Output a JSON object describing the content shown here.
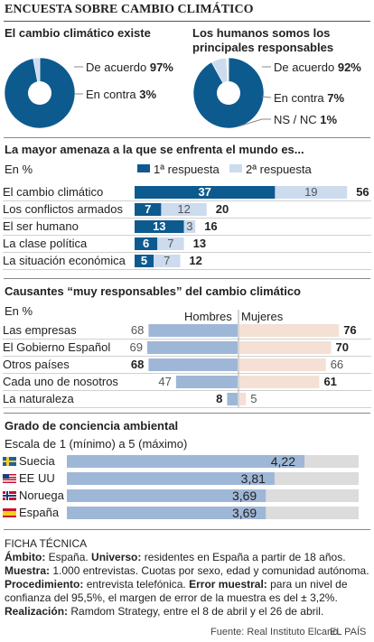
{
  "header": {
    "title": "ENCUESTA SOBRE CAMBIO CLIMÁTICO"
  },
  "colors": {
    "dark_blue": "#0d5a8f",
    "light_blue": "#cddbee",
    "bar_blue": "#9fb7d7",
    "bar_pink": "#f4e0d4",
    "gray_track": "#dcdcdc"
  },
  "chart_data": [
    {
      "type": "pie",
      "title": "El cambio climático existe",
      "slices": [
        {
          "label": "De acuerdo",
          "value": 97,
          "value_label": "97%"
        },
        {
          "label": "En contra",
          "value": 3,
          "value_label": "3%"
        }
      ]
    },
    {
      "type": "pie",
      "title": "Los humanos somos los principales responsables",
      "slices": [
        {
          "label": "De acuerdo",
          "value": 92,
          "value_label": "92%"
        },
        {
          "label": "En contra",
          "value": 7,
          "value_label": "7%"
        },
        {
          "label": "NS / NC",
          "value": 1,
          "value_label": "1%"
        }
      ]
    },
    {
      "type": "bar",
      "title": "La mayor amenaza a la que se enfrenta el mundo es...",
      "unit": "En %",
      "categories": [
        "El cambio climático",
        "Los conflictos armados",
        "El ser humano",
        "La clase política",
        "La situación económica"
      ],
      "series": [
        {
          "name": "1ª respuesta",
          "values": [
            37,
            7,
            13,
            6,
            5
          ]
        },
        {
          "name": "2ª respuesta",
          "values": [
            19,
            12,
            3,
            7,
            7
          ]
        }
      ],
      "totals": [
        56,
        20,
        16,
        13,
        12
      ]
    },
    {
      "type": "bar",
      "title": "Causantes “muy responsables” del cambio climático",
      "unit": "En %",
      "categories": [
        "Las empresas",
        "El Gobierno Español",
        "Otros países",
        "Cada uno de nosotros",
        "La naturaleza"
      ],
      "series": [
        {
          "name": "Hombres",
          "values": [
            68,
            69,
            68,
            47,
            8
          ]
        },
        {
          "name": "Mujeres",
          "values": [
            76,
            70,
            66,
            61,
            5
          ]
        }
      ],
      "bold_hombres": [
        false,
        false,
        true,
        false,
        true
      ],
      "bold_mujeres": [
        true,
        true,
        false,
        true,
        false
      ]
    },
    {
      "type": "bar",
      "title": "Grado de conciencia ambiental",
      "subtitle": "Escala de 1 (mínimo) a 5 (máximo)",
      "categories": [
        "Suecia",
        "EE UU",
        "Noruega",
        "España"
      ],
      "values": [
        4.22,
        3.81,
        3.69,
        3.69
      ],
      "value_labels": [
        "4,22",
        "3,81",
        "3,69",
        "3,69"
      ],
      "xlim": [
        1,
        5
      ]
    }
  ],
  "footer": {
    "ficha_title": "FICHA TÉCNICA",
    "ambito_label": "Ámbito:",
    "ambito_text": " España. ",
    "universo_label": "Universo:",
    "universo_text": " residentes en España a partir de 18 años.",
    "muestra_label": "Muestra:",
    "muestra_text": " 1.000 entrevistas. Cuotas por sexo, edad y comunidad autónoma.",
    "procedimiento_label": "Procedimiento:",
    "procedimiento_text": " entrevista telefónica. ",
    "error_label": "Error muestral:",
    "error_text": " para un nivel de",
    "error_text2": "confianza del 95,5%, el margen de error de la muestra es del ± 3,2%.",
    "realizacion_label": "Realización:",
    "realizacion_text": " Ramdom Strategy, entre el 8 de abril y el 26 de abril.",
    "source": "Fuente: Real Instituto Elcano.",
    "brand": "EL PAÍS"
  }
}
